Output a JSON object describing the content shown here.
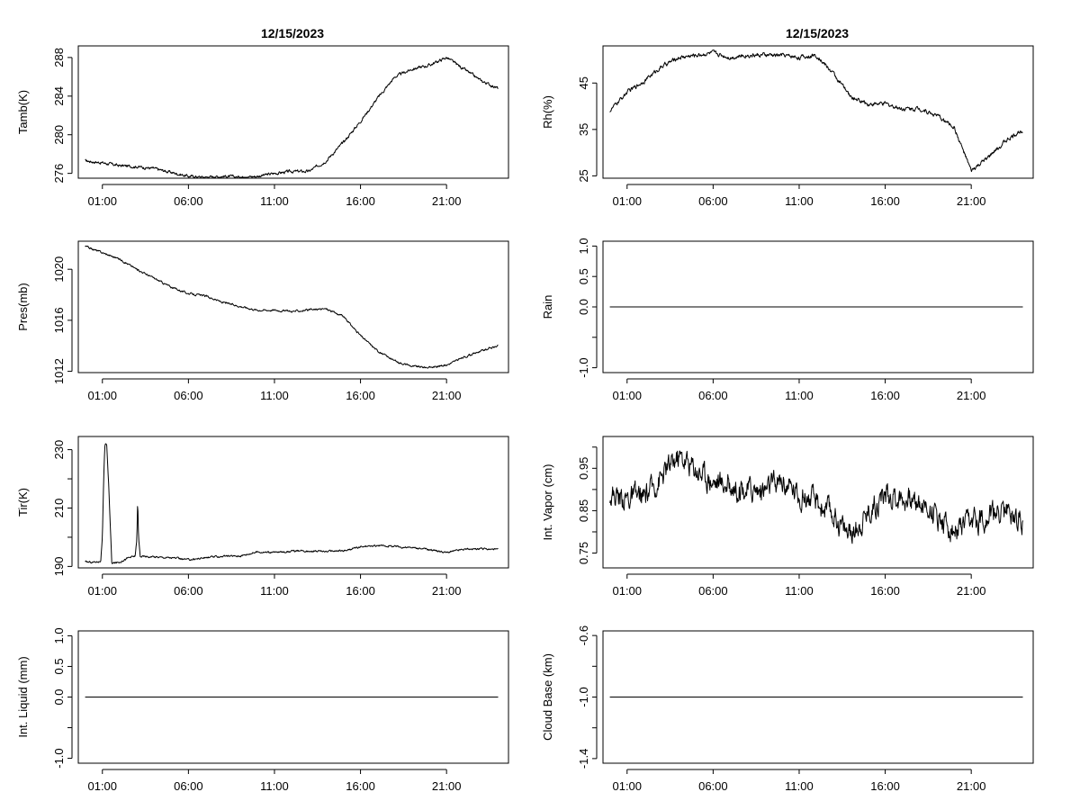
{
  "left_title": "12/15/2023",
  "right_title": "12/15/2023",
  "chart_data": [
    {
      "id": "tamb",
      "type": "line",
      "ylabel": "Tamb(K)",
      "ylim": [
        275.5,
        289.2
      ],
      "yticks": [
        276,
        280,
        284,
        288
      ],
      "xlabels": [
        "01:00",
        "06:00",
        "11:00",
        "16:00",
        "21:00"
      ],
      "xlim": [
        -0.4,
        24.6
      ],
      "x": [
        0,
        1,
        2,
        3,
        4,
        5,
        6,
        7,
        8,
        9,
        10,
        11,
        12,
        13,
        14,
        15,
        16,
        17,
        18,
        19,
        20,
        21,
        22,
        23,
        24
      ],
      "values": [
        277.3,
        277.1,
        276.8,
        276.7,
        276.5,
        276.1,
        275.7,
        275.6,
        275.7,
        275.6,
        275.7,
        276.0,
        276.2,
        276.2,
        277.3,
        279.2,
        281.4,
        283.8,
        286.0,
        286.8,
        287.2,
        288.0,
        286.8,
        285.6,
        284.8
      ],
      "noise": 0.12
    },
    {
      "id": "rh",
      "type": "line",
      "ylabel": "Rh(%)",
      "ylim": [
        24.5,
        53
      ],
      "yticks": [
        25,
        35,
        45
      ],
      "xlabels": [
        "01:00",
        "06:00",
        "11:00",
        "16:00",
        "21:00"
      ],
      "xlim": [
        -0.4,
        24.6
      ],
      "x": [
        0,
        1,
        2,
        3,
        4,
        5,
        6,
        7,
        8,
        9,
        10,
        11,
        12,
        13,
        14,
        15,
        16,
        17,
        18,
        19,
        20,
        21,
        22,
        23,
        24
      ],
      "values": [
        39,
        43,
        45.5,
        48.5,
        50.5,
        51,
        51.5,
        50.5,
        51,
        51,
        51,
        50.5,
        51,
        47,
        42,
        40.5,
        40.5,
        39.5,
        39.5,
        38,
        35.5,
        26,
        29,
        32.5,
        35
      ],
      "noise": 0.35
    },
    {
      "id": "pres",
      "type": "line",
      "ylabel": "Pres(mb)",
      "ylim": [
        1011.9,
        1022.2
      ],
      "yticks": [
        1012,
        1016,
        1020
      ],
      "xlabels": [
        "01:00",
        "06:00",
        "11:00",
        "16:00",
        "21:00"
      ],
      "xlim": [
        -0.4,
        24.6
      ],
      "x": [
        0,
        1,
        2,
        3,
        4,
        5,
        6,
        7,
        8,
        9,
        10,
        11,
        12,
        13,
        14,
        15,
        16,
        17,
        18,
        19,
        20,
        21,
        22,
        23,
        24
      ],
      "values": [
        1021.8,
        1021.3,
        1020.8,
        1020.0,
        1019.3,
        1018.6,
        1018.1,
        1017.9,
        1017.4,
        1017.1,
        1016.8,
        1016.8,
        1016.7,
        1016.8,
        1016.9,
        1016.3,
        1014.8,
        1013.6,
        1012.8,
        1012.4,
        1012.3,
        1012.5,
        1013.1,
        1013.6,
        1014.0
      ],
      "noise": 0.06
    },
    {
      "id": "rain",
      "type": "line",
      "ylabel": "Rain",
      "ylim": [
        -1.08,
        1.08
      ],
      "yticks": [
        -1.0,
        0.0,
        0.5,
        1.0
      ],
      "yticklabels": [
        "-1.0",
        "0.0",
        "0.5",
        "1.0"
      ],
      "extra_ticks": [
        -0.5
      ],
      "xlabels": [
        "01:00",
        "06:00",
        "11:00",
        "16:00",
        "21:00"
      ],
      "xlim": [
        -0.4,
        24.6
      ],
      "x": [
        0,
        24
      ],
      "values": [
        0,
        0
      ],
      "noise": 0
    },
    {
      "id": "tir",
      "type": "line",
      "ylabel": "Tir(K)",
      "ylim": [
        189.5,
        234.5
      ],
      "yticks": [
        190,
        210,
        230
      ],
      "extra_ticks": [
        200,
        220
      ],
      "xlabels": [
        "01:00",
        "06:00",
        "11:00",
        "16:00",
        "21:00"
      ],
      "xlim": [
        -0.4,
        24.6
      ],
      "x": [
        0,
        0.5,
        0.9,
        1.0,
        1.1,
        1.15,
        1.25,
        1.35,
        1.45,
        1.55,
        1.7,
        2.0,
        2.5,
        2.9,
        3.0,
        3.05,
        3.1,
        3.2,
        4,
        5,
        6,
        7,
        8,
        9,
        10,
        11,
        12,
        13,
        14,
        15,
        16,
        17,
        18,
        19,
        20,
        21,
        22,
        23,
        24
      ],
      "values": [
        191.5,
        191.5,
        191.8,
        200,
        225,
        231.5,
        232,
        220,
        205,
        191,
        191.2,
        191.5,
        193,
        193.5,
        199,
        213,
        200,
        193.5,
        193.3,
        193,
        192.3,
        193,
        193.5,
        193.6,
        195,
        194.8,
        195.2,
        195.3,
        195.2,
        195.3,
        196.7,
        197.1,
        196.9,
        196.4,
        195.8,
        194.8,
        195.9,
        196,
        195.8
      ],
      "noise": 0.25
    },
    {
      "id": "vapor",
      "type": "line",
      "ylabel": "Int. Vapor (cm)",
      "ylim": [
        0.715,
        1.025
      ],
      "yticks": [
        0.75,
        0.85,
        0.95
      ],
      "extra_ticks": [
        0.8,
        0.9,
        1.0
      ],
      "yticklabels_shown": [
        "0.75",
        "0.85",
        "0.95"
      ],
      "xlabels": [
        "01:00",
        "06:00",
        "11:00",
        "16:00",
        "21:00"
      ],
      "xlim": [
        -0.4,
        24.6
      ],
      "x": [
        0,
        1,
        2,
        3,
        4,
        5,
        6,
        7,
        8,
        9,
        10,
        11,
        12,
        13,
        14,
        15,
        16,
        17,
        18,
        19,
        20,
        21,
        22,
        23,
        24
      ],
      "values": [
        0.89,
        0.88,
        0.88,
        0.93,
        0.98,
        0.95,
        0.92,
        0.91,
        0.9,
        0.9,
        0.92,
        0.89,
        0.87,
        0.84,
        0.79,
        0.85,
        0.89,
        0.88,
        0.87,
        0.84,
        0.8,
        0.82,
        0.84,
        0.85,
        0.83
      ],
      "noise": 0.022
    },
    {
      "id": "liquid",
      "type": "line",
      "ylabel": "Int. Liquid (mm)",
      "ylim": [
        -1.08,
        1.08
      ],
      "yticks": [
        -1.0,
        0.0,
        0.5,
        1.0
      ],
      "yticklabels": [
        "-1.0",
        "0.0",
        "0.5",
        "1.0"
      ],
      "extra_ticks": [
        -0.5
      ],
      "xlabels": [
        "01:00",
        "06:00",
        "11:00",
        "16:00",
        "21:00"
      ],
      "xlim": [
        -0.4,
        24.6
      ],
      "x": [
        0,
        24
      ],
      "values": [
        0,
        0
      ],
      "noise": 0
    },
    {
      "id": "cloud",
      "type": "line",
      "ylabel": "Cloud Base (km)",
      "ylim": [
        -1.43,
        -0.57
      ],
      "yticks": [
        -1.4,
        -1.0,
        -0.6
      ],
      "yticklabels": [
        "-1.4",
        "-1.0",
        "-0.6"
      ],
      "extra_ticks": [
        -1.2,
        -0.8
      ],
      "xlabels": [
        "01:00",
        "06:00",
        "11:00",
        "16:00",
        "21:00"
      ],
      "xlim": [
        -0.4,
        24.6
      ],
      "x": [
        0,
        24
      ],
      "values": [
        -1.0,
        -1.0
      ],
      "noise": 0
    }
  ]
}
